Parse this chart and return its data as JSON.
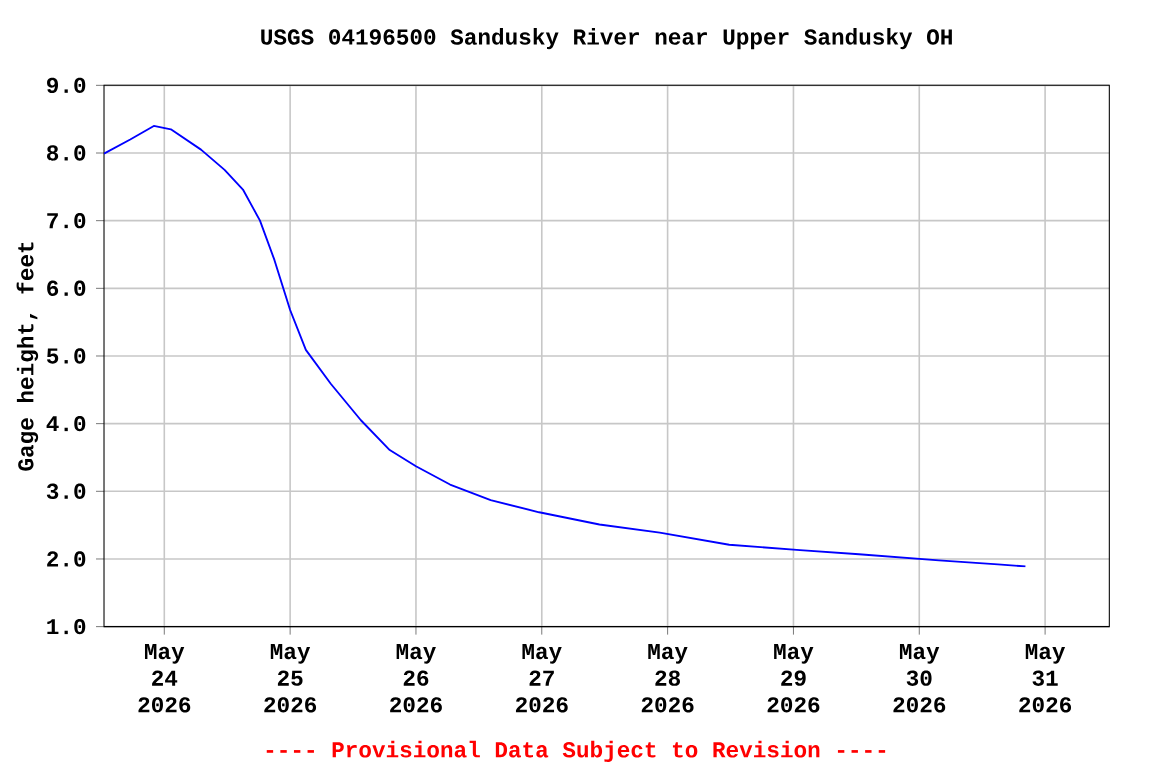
{
  "chart_data": {
    "type": "line",
    "title": "USGS 04196500 Sandusky River near Upper Sandusky OH",
    "ylabel": "Gage height, feet",
    "annotations": [
      "---- Provisional Data Subject to Revision ----"
    ],
    "x": [
      "2026-05-23T12:30",
      "2026-05-23T17:30",
      "2026-05-23T22:00",
      "2026-05-24T01:15",
      "2026-05-24T07:00",
      "2026-05-24T11:30",
      "2026-05-24T15:00",
      "2026-05-24T18:15",
      "2026-05-24T21:00",
      "2026-05-25T00:00",
      "2026-05-25T03:00",
      "2026-05-25T07:45",
      "2026-05-25T13:30",
      "2026-05-25T19:00",
      "2026-05-26T00:00",
      "2026-05-26T06:30",
      "2026-05-26T14:15",
      "2026-05-26T23:30",
      "2026-05-27T11:00",
      "2026-05-27T22:30",
      "2026-05-28T11:45",
      "2026-05-29T01:15",
      "2026-05-29T12:30",
      "2026-05-30T03:45",
      "2026-05-30T15:00",
      "2026-05-30T20:15"
    ],
    "series": [
      {
        "color": "#0000ff",
        "values": [
          7.99,
          8.2,
          8.4,
          8.35,
          8.05,
          7.75,
          7.46,
          7.0,
          6.42,
          5.68,
          5.09,
          4.59,
          4.05,
          3.61,
          3.37,
          3.1,
          2.87,
          2.69,
          2.51,
          2.39,
          2.21,
          2.13,
          2.07,
          1.98,
          1.92,
          1.89
        ]
      }
    ],
    "xlim": [
      "2026-05-23T12:30",
      "2026-05-31T12:15"
    ],
    "xticks": [
      {
        "value": "2026-05-24",
        "label": "May 24 2026"
      },
      {
        "value": "2026-05-25",
        "label": "May 25 2026"
      },
      {
        "value": "2026-05-26",
        "label": "May 26 2026"
      },
      {
        "value": "2026-05-27",
        "label": "May 27 2026"
      },
      {
        "value": "2026-05-28",
        "label": "May 28 2026"
      },
      {
        "value": "2026-05-29",
        "label": "May 29 2026"
      },
      {
        "value": "2026-05-30",
        "label": "May 30 2026"
      },
      {
        "value": "2026-05-31",
        "label": "May 31 2026"
      }
    ],
    "ylim": [
      1,
      9
    ],
    "yticks": [
      {
        "value": 1,
        "label": "1.0"
      },
      {
        "value": 2,
        "label": "2.0"
      },
      {
        "value": 3,
        "label": "3.0"
      },
      {
        "value": 4,
        "label": "4.0"
      },
      {
        "value": 5,
        "label": "5.0"
      },
      {
        "value": 6,
        "label": "6.0"
      },
      {
        "value": 7,
        "label": "7.0"
      },
      {
        "value": 8,
        "label": "8.0"
      },
      {
        "value": 9,
        "label": "9.0"
      }
    ],
    "grid": true
  }
}
